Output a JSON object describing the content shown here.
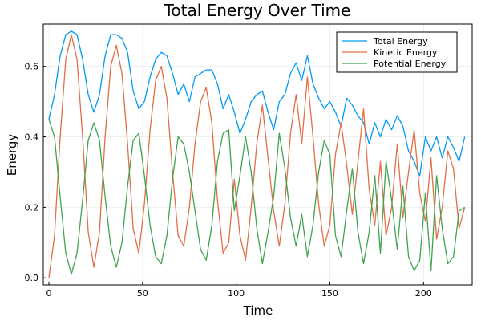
{
  "chart_data": {
    "type": "line",
    "title": "Total Energy Over Time",
    "xlabel": "Time",
    "ylabel": "Energy",
    "xlim": [
      -3,
      226
    ],
    "ylim": [
      -0.02,
      0.72
    ],
    "xticks": [
      0,
      50,
      100,
      150,
      200
    ],
    "yticks": [
      0.0,
      0.2,
      0.4,
      0.6
    ],
    "grid": true,
    "legend_position": "top-right",
    "series": [
      {
        "name": "Total Energy",
        "color": "#009AFA",
        "x": [
          0,
          3,
          6,
          9,
          12,
          15,
          18,
          21,
          24,
          27,
          30,
          33,
          36,
          39,
          42,
          45,
          48,
          51,
          54,
          57,
          60,
          63,
          66,
          69,
          72,
          75,
          78,
          81,
          84,
          87,
          90,
          93,
          96,
          99,
          102,
          105,
          108,
          111,
          114,
          117,
          120,
          123,
          126,
          129,
          132,
          135,
          138,
          141,
          144,
          147,
          150,
          153,
          156,
          159,
          162,
          165,
          168,
          171,
          174,
          177,
          180,
          183,
          186,
          189,
          192,
          195,
          198,
          201,
          204,
          207,
          210,
          213,
          216,
          219,
          222
        ],
        "y": [
          0.45,
          0.52,
          0.63,
          0.69,
          0.7,
          0.69,
          0.62,
          0.52,
          0.47,
          0.52,
          0.63,
          0.69,
          0.69,
          0.68,
          0.64,
          0.53,
          0.48,
          0.5,
          0.57,
          0.62,
          0.64,
          0.63,
          0.58,
          0.52,
          0.55,
          0.5,
          0.57,
          0.58,
          0.59,
          0.59,
          0.55,
          0.48,
          0.52,
          0.47,
          0.41,
          0.45,
          0.5,
          0.52,
          0.53,
          0.47,
          0.42,
          0.5,
          0.52,
          0.58,
          0.61,
          0.56,
          0.63,
          0.55,
          0.51,
          0.48,
          0.5,
          0.47,
          0.43,
          0.51,
          0.49,
          0.46,
          0.44,
          0.38,
          0.44,
          0.4,
          0.45,
          0.42,
          0.46,
          0.43,
          0.36,
          0.33,
          0.29,
          0.4,
          0.36,
          0.4,
          0.34,
          0.4,
          0.37,
          0.33,
          0.4
        ]
      },
      {
        "name": "Kinetic Energy",
        "color": "#E26F46",
        "x": [
          0,
          3,
          6,
          9,
          12,
          15,
          18,
          21,
          24,
          27,
          30,
          33,
          36,
          39,
          42,
          45,
          48,
          51,
          54,
          57,
          60,
          63,
          66,
          69,
          72,
          75,
          78,
          81,
          84,
          87,
          90,
          93,
          96,
          99,
          102,
          105,
          108,
          111,
          114,
          117,
          120,
          123,
          126,
          129,
          132,
          135,
          138,
          141,
          144,
          147,
          150,
          153,
          156,
          159,
          162,
          165,
          168,
          171,
          174,
          177,
          180,
          183,
          186,
          189,
          192,
          195,
          198,
          201,
          204,
          207,
          210,
          213,
          216,
          219,
          222
        ],
        "y": [
          0.0,
          0.12,
          0.4,
          0.62,
          0.69,
          0.62,
          0.4,
          0.13,
          0.03,
          0.13,
          0.4,
          0.6,
          0.66,
          0.58,
          0.38,
          0.14,
          0.07,
          0.21,
          0.42,
          0.56,
          0.6,
          0.51,
          0.3,
          0.12,
          0.09,
          0.2,
          0.38,
          0.5,
          0.54,
          0.44,
          0.22,
          0.07,
          0.1,
          0.28,
          0.12,
          0.05,
          0.2,
          0.38,
          0.49,
          0.34,
          0.19,
          0.09,
          0.21,
          0.41,
          0.52,
          0.38,
          0.57,
          0.4,
          0.21,
          0.09,
          0.15,
          0.35,
          0.44,
          0.32,
          0.18,
          0.33,
          0.48,
          0.25,
          0.15,
          0.33,
          0.12,
          0.2,
          0.38,
          0.17,
          0.3,
          0.42,
          0.24,
          0.16,
          0.34,
          0.11,
          0.2,
          0.36,
          0.31,
          0.14,
          0.2
        ]
      },
      {
        "name": "Potential Energy",
        "color": "#3EA44E",
        "x": [
          0,
          3,
          6,
          9,
          12,
          15,
          18,
          21,
          24,
          27,
          30,
          33,
          36,
          39,
          42,
          45,
          48,
          51,
          54,
          57,
          60,
          63,
          66,
          69,
          72,
          75,
          78,
          81,
          84,
          87,
          90,
          93,
          96,
          99,
          102,
          105,
          108,
          111,
          114,
          117,
          120,
          123,
          126,
          129,
          132,
          135,
          138,
          141,
          144,
          147,
          150,
          153,
          156,
          159,
          162,
          165,
          168,
          171,
          174,
          177,
          180,
          183,
          186,
          189,
          192,
          195,
          198,
          201,
          204,
          207,
          210,
          213,
          216,
          219,
          222
        ],
        "y": [
          0.45,
          0.4,
          0.23,
          0.07,
          0.01,
          0.07,
          0.22,
          0.39,
          0.44,
          0.39,
          0.23,
          0.09,
          0.03,
          0.1,
          0.26,
          0.39,
          0.41,
          0.29,
          0.15,
          0.06,
          0.04,
          0.12,
          0.28,
          0.4,
          0.38,
          0.3,
          0.19,
          0.08,
          0.05,
          0.15,
          0.33,
          0.41,
          0.42,
          0.19,
          0.29,
          0.4,
          0.3,
          0.14,
          0.04,
          0.13,
          0.23,
          0.41,
          0.31,
          0.17,
          0.09,
          0.18,
          0.06,
          0.15,
          0.3,
          0.39,
          0.35,
          0.12,
          0.06,
          0.19,
          0.31,
          0.13,
          0.04,
          0.13,
          0.29,
          0.07,
          0.33,
          0.22,
          0.08,
          0.26,
          0.06,
          0.02,
          0.05,
          0.24,
          0.02,
          0.29,
          0.14,
          0.04,
          0.06,
          0.19,
          0.2
        ]
      }
    ]
  }
}
